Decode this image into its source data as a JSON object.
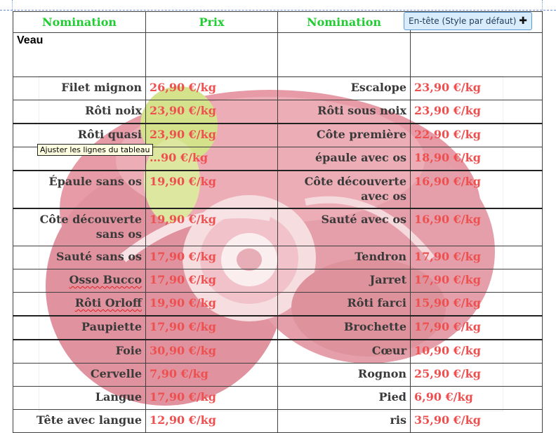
{
  "header": {
    "col1": "Nomination",
    "col2": "Prix",
    "col3": "Nomination",
    "style_label": "En-tête (Style par défaut)",
    "style_plus": "✚"
  },
  "section_title": "Veau",
  "rows": [
    {
      "name_left": "Filet mignon",
      "price_left": "26,90 €/kg",
      "name_right": "Escalope",
      "price_right": "23,90 €/kg"
    },
    {
      "name_left": "Rôti noix",
      "price_left": "23,90 €/kg",
      "name_right": "Rôti sous noix",
      "price_right": "23,90 €/kg"
    },
    {
      "name_left": "Rôti quasi",
      "price_left": "23,90 €/kg",
      "name_right": "Côte première",
      "price_right": "22,90 €/kg"
    },
    {
      "name_left": "",
      "price_left": "…90 €/kg",
      "name_right": "épaule avec os",
      "price_right": "18,90 €/kg"
    },
    {
      "name_left": "Épaule sans os",
      "price_left": "19,90 €/kg",
      "name_right": "Côte découverte avec os",
      "price_right": "16,90 €/kg"
    },
    {
      "name_left": "Côte découverte sans os",
      "price_left": "19,90 €/kg",
      "name_right": "Sauté avec os",
      "price_right": "16,90 €/kg"
    },
    {
      "name_left": "Sauté sans os",
      "price_left": "17,90 €/kg",
      "name_right": "Tendron",
      "price_right": "17,90 €/kg"
    },
    {
      "name_left": "Osso Bucco",
      "price_left": "17,90 €/kg",
      "name_right": "Jarret",
      "price_right": "17,90 €/kg"
    },
    {
      "name_left": "Rôti Orloff",
      "price_left": "19,90 €/kg",
      "name_right": "Rôti farci",
      "price_right": "15,90 €/kg"
    },
    {
      "name_left": "Paupiette",
      "price_left": "17,90 €/kg",
      "name_right": "Brochette",
      "price_right": "17,90 €/kg"
    },
    {
      "name_left": "Foie",
      "price_left": "30,90 €/kg",
      "name_right": "Cœur",
      "price_right": "10,90 €/kg"
    },
    {
      "name_left": "Cervelle",
      "price_left": "7,90 €/kg",
      "name_right": "Rognon",
      "price_right": "25,90 €/kg"
    },
    {
      "name_left": "Langue",
      "price_left": "17,90 €/kg",
      "name_right": "Pied",
      "price_right": "6,90 €/kg"
    },
    {
      "name_left": "Tête avec langue",
      "price_left": "12,90 €/kg",
      "name_right": "ris",
      "price_right": "35,90 €/kg"
    }
  ],
  "tooltip": "Ajuster les lignes du tableau",
  "colors": {
    "header_green": "#22cc33",
    "price_red": "#ee5050",
    "accent_blue": "#5b9bd5"
  }
}
